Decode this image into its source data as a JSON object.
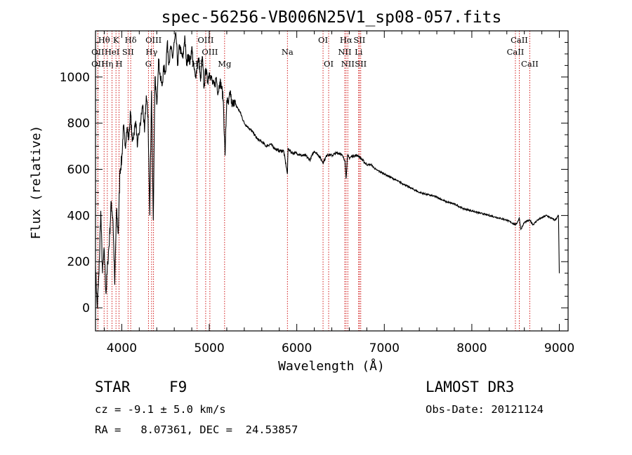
{
  "chart_data": {
    "type": "line",
    "title": "spec-56256-VB006N25V1_sp08-057.fits",
    "xlabel": "Wavelength (Å)",
    "ylabel": "Flux (relative)",
    "xlim": [
      3700,
      9100
    ],
    "ylim": [
      -100,
      1200
    ],
    "xticks": [
      4000,
      5000,
      6000,
      7000,
      8000,
      9000
    ],
    "yticks": [
      0,
      200,
      400,
      600,
      800,
      1000
    ],
    "series": [
      {
        "name": "spectrum",
        "x": [
          3700,
          3720,
          3740,
          3760,
          3780,
          3800,
          3820,
          3840,
          3860,
          3880,
          3900,
          3920,
          3940,
          3960,
          3980,
          4000,
          4020,
          4040,
          4060,
          4080,
          4100,
          4120,
          4140,
          4160,
          4180,
          4200,
          4220,
          4240,
          4260,
          4280,
          4300,
          4320,
          4340,
          4360,
          4380,
          4400,
          4420,
          4440,
          4460,
          4480,
          4500,
          4520,
          4540,
          4560,
          4580,
          4600,
          4620,
          4640,
          4660,
          4680,
          4700,
          4720,
          4740,
          4760,
          4780,
          4800,
          4820,
          4840,
          4860,
          4880,
          4900,
          4920,
          4940,
          4960,
          4980,
          5000,
          5020,
          5040,
          5060,
          5080,
          5100,
          5120,
          5140,
          5160,
          5180,
          5200,
          5220,
          5240,
          5260,
          5280,
          5300,
          5350,
          5400,
          5450,
          5500,
          5550,
          5600,
          5650,
          5700,
          5750,
          5800,
          5850,
          5893,
          5900,
          5950,
          6000,
          6050,
          6100,
          6150,
          6200,
          6250,
          6300,
          6350,
          6400,
          6450,
          6500,
          6550,
          6563,
          6580,
          6600,
          6650,
          6700,
          6750,
          6800,
          6850,
          6900,
          6950,
          7000,
          7100,
          7200,
          7300,
          7400,
          7500,
          7600,
          7700,
          7800,
          7900,
          8000,
          8100,
          8200,
          8300,
          8400,
          8498,
          8520,
          8542,
          8560,
          8600,
          8662,
          8700,
          8750,
          8800,
          8850,
          8900,
          8950,
          8990,
          9000
        ],
        "y": [
          180,
          0,
          150,
          420,
          150,
          250,
          60,
          200,
          300,
          460,
          380,
          100,
          420,
          320,
          600,
          640,
          790,
          700,
          780,
          730,
          850,
          720,
          760,
          810,
          700,
          760,
          820,
          880,
          760,
          920,
          830,
          400,
          940,
          380,
          1000,
          880,
          1080,
          1000,
          960,
          1040,
          1020,
          1150,
          1060,
          1130,
          1080,
          1150,
          1180,
          1050,
          1140,
          1100,
          1080,
          1180,
          1050,
          1100,
          1060,
          1130,
          1050,
          1000,
          1040,
          1080,
          980,
          1090,
          950,
          1040,
          980,
          1020,
          1000,
          970,
          960,
          1000,
          930,
          980,
          960,
          900,
          660,
          900,
          880,
          940,
          870,
          900,
          880,
          850,
          800,
          780,
          760,
          730,
          720,
          700,
          710,
          690,
          680,
          680,
          580,
          690,
          670,
          670,
          660,
          660,
          640,
          680,
          660,
          630,
          665,
          660,
          670,
          670,
          640,
          560,
          660,
          650,
          660,
          660,
          640,
          620,
          620,
          600,
          590,
          580,
          560,
          540,
          520,
          500,
          490,
          480,
          460,
          450,
          430,
          420,
          410,
          400,
          390,
          380,
          360,
          370,
          390,
          340,
          370,
          380,
          360,
          380,
          390,
          400,
          390,
          380,
          400,
          150
        ]
      }
    ],
    "spectral_lines": [
      {
        "label": "Hθ",
        "wave": 3798,
        "row": 1
      },
      {
        "label": "OII",
        "wave": 3727,
        "row": 2
      },
      {
        "label": "OII",
        "wave": 3727,
        "row": 3
      },
      {
        "label": "Hη",
        "wave": 3835,
        "row": 3
      },
      {
        "label": "K",
        "wave": 3934,
        "row": 1
      },
      {
        "label": "HeI",
        "wave": 3889,
        "row": 2
      },
      {
        "label": "H",
        "wave": 3969,
        "row": 3
      },
      {
        "label": "Hδ",
        "wave": 4102,
        "row": 1
      },
      {
        "label": "SII",
        "wave": 4072,
        "row": 2
      },
      {
        "label": "OIII",
        "wave": 4363,
        "row": 1
      },
      {
        "label": "Hγ",
        "wave": 4341,
        "row": 2
      },
      {
        "label": "G",
        "wave": 4305,
        "row": 3
      },
      {
        "label": "OIII",
        "wave": 4959,
        "row": 1
      },
      {
        "label": "OIII",
        "wave": 5007,
        "row": 2
      },
      {
        "label": "Hβ",
        "wave": 4861,
        "row": 3
      },
      {
        "label": "Mg",
        "wave": 5175,
        "row": 3
      },
      {
        "label": "Na",
        "wave": 5893,
        "row": 2
      },
      {
        "label": "OI",
        "wave": 6300,
        "row": 1
      },
      {
        "label": "OI",
        "wave": 6364,
        "row": 3
      },
      {
        "label": "Hα",
        "wave": 6563,
        "row": 1
      },
      {
        "label": "NII",
        "wave": 6548,
        "row": 2
      },
      {
        "label": "NII",
        "wave": 6583,
        "row": 3
      },
      {
        "label": "SII",
        "wave": 6716,
        "row": 1
      },
      {
        "label": "Li",
        "wave": 6707,
        "row": 2
      },
      {
        "label": "SII",
        "wave": 6731,
        "row": 3
      },
      {
        "label": "CaII",
        "wave": 8542,
        "row": 1
      },
      {
        "label": "CaII",
        "wave": 8498,
        "row": 2
      },
      {
        "label": "CaII",
        "wave": 8662,
        "row": 3
      }
    ]
  },
  "info": {
    "object_class": "STAR",
    "subclass": "F9",
    "survey": "LAMOST DR3",
    "velocity": "cz = -9.1 ± 5.0 km/s",
    "obs_date": "Obs-Date: 20121124",
    "coords": "RA =   8.07361, DEC =  24.53857"
  },
  "colors": {
    "spectrum": "#000000",
    "line_marker": "#cc0000",
    "axis": "#000000"
  }
}
